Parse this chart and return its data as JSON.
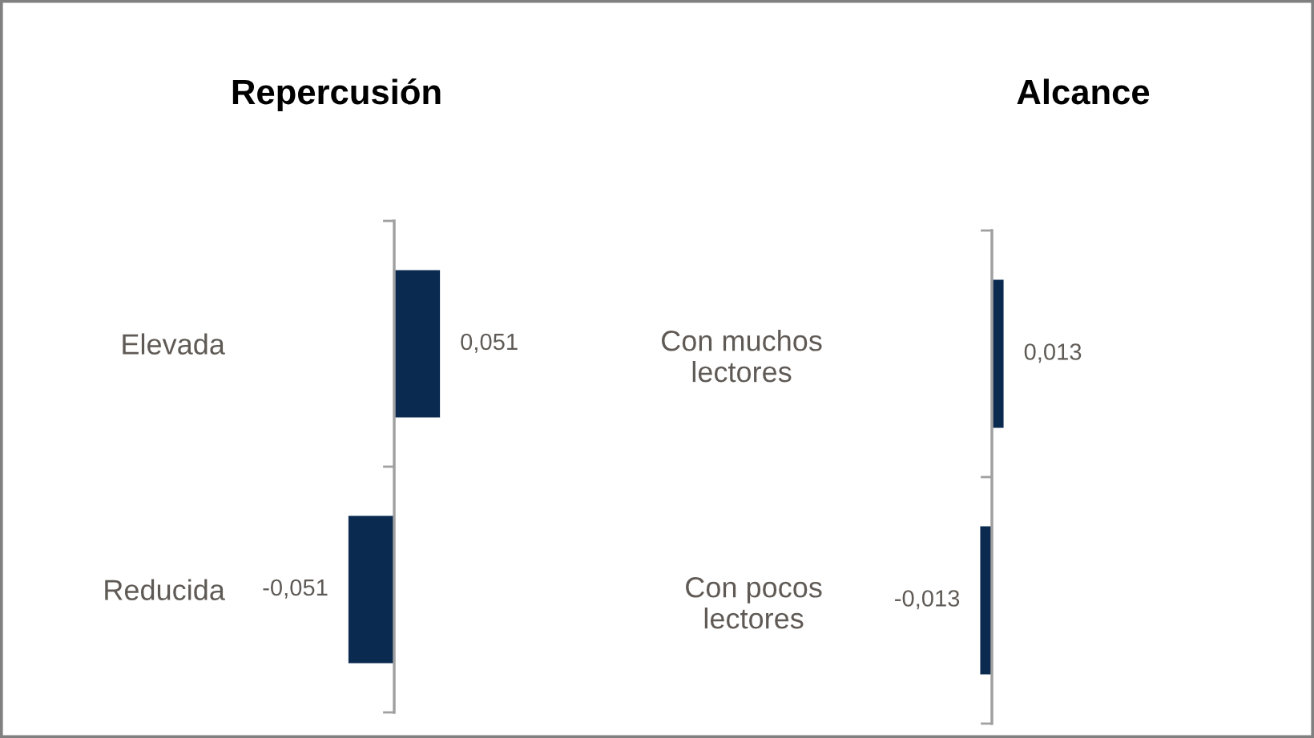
{
  "chart_data": [
    {
      "type": "bar",
      "orientation": "horizontal",
      "title": "Repercusión",
      "categories": [
        "Elevada",
        "Reducida"
      ],
      "values": [
        0.051,
        -0.051
      ],
      "value_labels": [
        "0,051",
        "-0,051"
      ],
      "color": "#0b2a50",
      "tick_labels": "y"
    },
    {
      "type": "bar",
      "orientation": "horizontal",
      "title": "Alcance",
      "categories": [
        "Con muchos\nlectores",
        "Con pocos\nlectores"
      ],
      "values": [
        0.013,
        -0.013
      ],
      "value_labels": [
        "0,013",
        "-0,013"
      ],
      "color": "#0b2a50",
      "tick_labels": "y"
    }
  ]
}
